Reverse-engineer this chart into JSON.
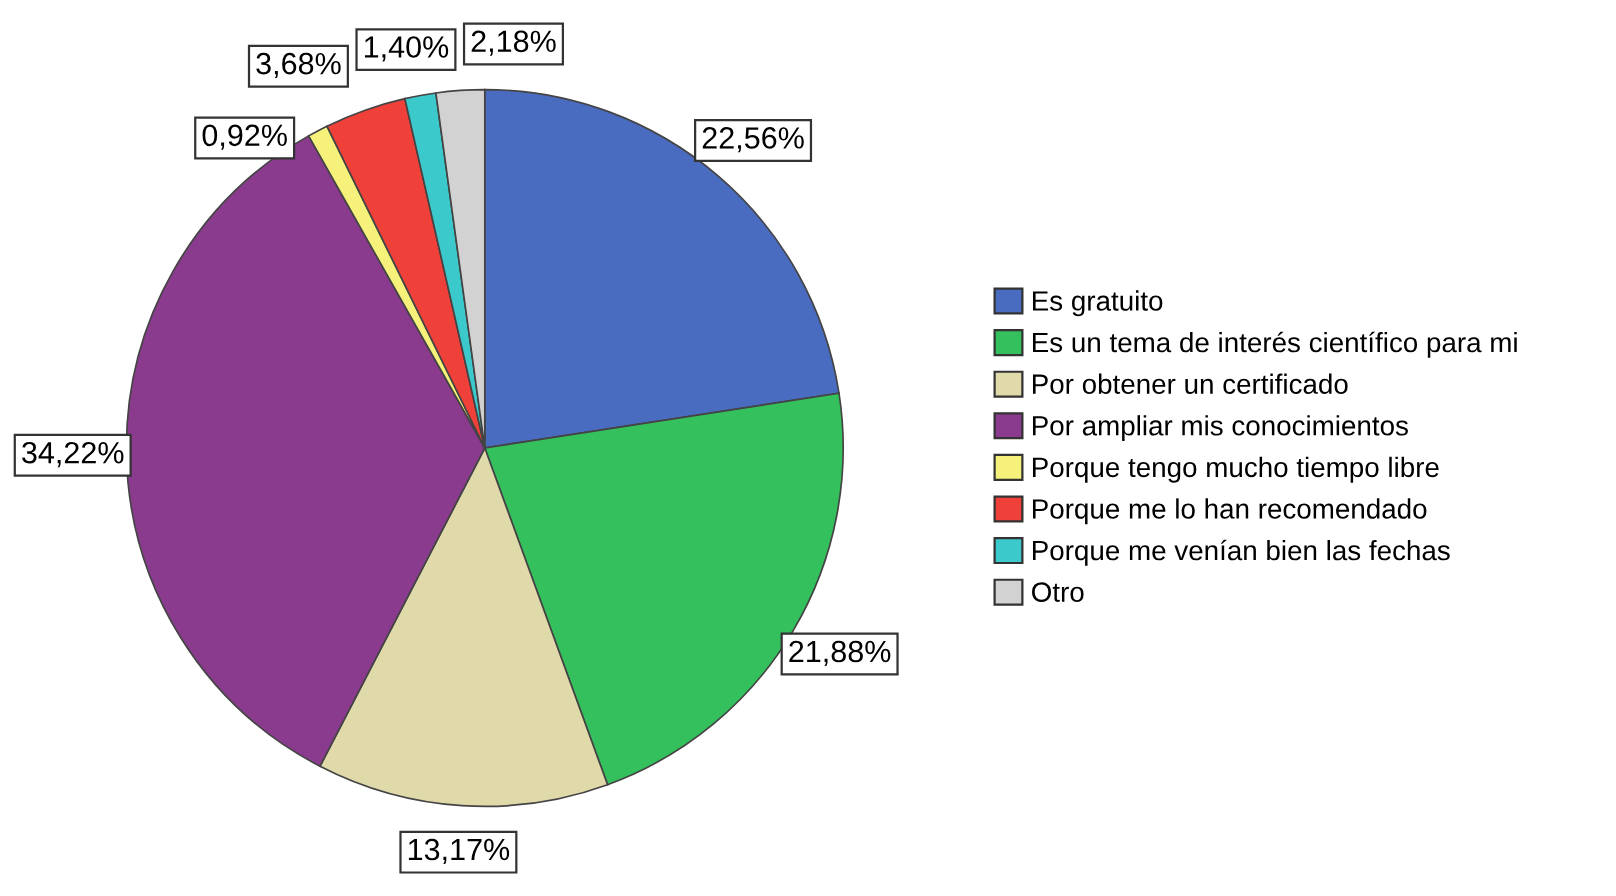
{
  "chart_data": {
    "type": "pie",
    "categories": [
      "Es gratuito",
      "Es un tema de interés científico para mi",
      "Por obtener un certificado",
      "Por ampliar mis conocimientos",
      "Porque tengo mucho tiempo libre",
      "Porque me lo han recomendado",
      "Porque me venían bien las fechas",
      "Otro"
    ],
    "values": [
      22.56,
      21.88,
      13.17,
      34.22,
      0.92,
      3.68,
      1.4,
      2.18
    ],
    "value_labels": [
      "22,56%",
      "21,88%",
      "13,17%",
      "34,22%",
      "0,92%",
      "3,68%",
      "1,40%",
      "2,18%"
    ],
    "colors": [
      "#4a6cc0",
      "#34c05c",
      "#e0d9aa",
      "#8a3b8e",
      "#f6f17a",
      "#ef403a",
      "#3cc9cc",
      "#d2d2d2"
    ],
    "legend": "right"
  }
}
